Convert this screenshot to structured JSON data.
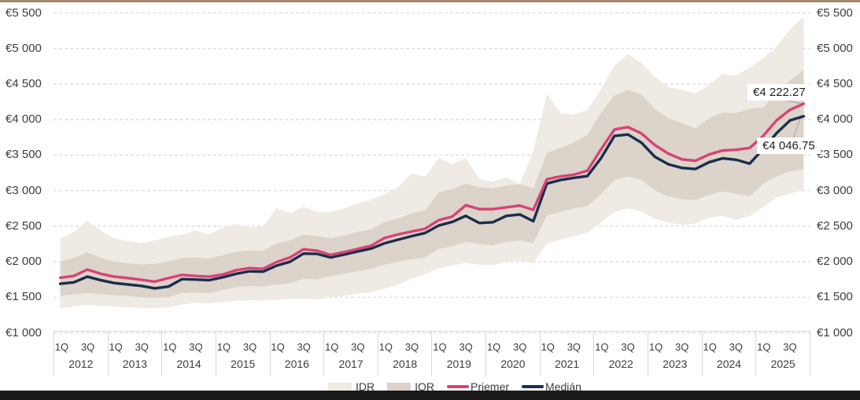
{
  "colors": {
    "priemer_line": "#d64374",
    "median_line": "#1a2e4d",
    "idr_band": "#efeae4",
    "iqr_band": "#dcd3ca",
    "gridline": "#dcdcdc",
    "axis_border": "#d9d9d9",
    "axis_text": "#3d3d3d",
    "top_border": "#a58a6e",
    "bottom_bar": "#1b1b1b",
    "leader_line": "#a6a6a6"
  },
  "annotations": {
    "priemer_label": "€4 222.27",
    "median_label": "€4 046.75"
  },
  "legend": {
    "items": [
      {
        "label": "IDR",
        "type": "band"
      },
      {
        "label": "IQR",
        "type": "band"
      },
      {
        "label": "Priemer",
        "type": "line"
      },
      {
        "label": "Medián",
        "type": "line"
      }
    ]
  },
  "chart_data": {
    "type": "line",
    "title": "",
    "xlabel": "",
    "ylabel": "",
    "ylim": [
      1000,
      5500
    ],
    "grid": "horizontal-dashed",
    "legend_position": "bottom",
    "y_axis": {
      "tick_values": [
        5500,
        5000,
        4500,
        4000,
        3500,
        3000,
        2500,
        2000,
        1500,
        1000
      ],
      "tick_labels": [
        "€5 500",
        "€5 000",
        "€4 500",
        "€4 000",
        "€3 500",
        "€3 000",
        "€2 500",
        "€2 000",
        "€1 500",
        "€1 000"
      ],
      "both_sides": true
    },
    "x_axis": {
      "years": [
        "2012",
        "2013",
        "2014",
        "2015",
        "2016",
        "2017",
        "2018",
        "2019",
        "2020",
        "2021",
        "2022",
        "2023",
        "2024",
        "2025"
      ],
      "quarter_labels": [
        "1Q",
        "3Q"
      ],
      "quarters_per_year": 4
    },
    "series": [
      {
        "name": "IDR_top",
        "values": [
          2330,
          2420,
          2570,
          2440,
          2330,
          2290,
          2260,
          2300,
          2350,
          2380,
          2440,
          2385,
          2475,
          2530,
          2480,
          2495,
          2755,
          2680,
          2775,
          2700,
          2705,
          2750,
          2820,
          2870,
          2950,
          3050,
          3240,
          3200,
          3460,
          3370,
          3460,
          3165,
          3130,
          3185,
          3095,
          3560,
          4355,
          4095,
          4070,
          4135,
          4430,
          4760,
          4925,
          4795,
          4600,
          4455,
          4420,
          4365,
          4490,
          4640,
          4620,
          4730,
          4860,
          5030,
          5270,
          5445
        ]
      },
      {
        "name": "IDR_bottom",
        "values": [
          1340,
          1370,
          1395,
          1380,
          1370,
          1360,
          1350,
          1345,
          1360,
          1400,
          1420,
          1415,
          1430,
          1450,
          1460,
          1455,
          1465,
          1475,
          1480,
          1470,
          1500,
          1520,
          1550,
          1575,
          1620,
          1680,
          1760,
          1830,
          1905,
          1950,
          1980,
          1960,
          1950,
          2000,
          2020,
          1985,
          2250,
          2310,
          2360,
          2410,
          2550,
          2700,
          2750,
          2705,
          2600,
          2550,
          2520,
          2535,
          2620,
          2645,
          2590,
          2645,
          2772,
          2900,
          2960,
          3005
        ]
      },
      {
        "name": "IQR_top",
        "values": [
          2000,
          2055,
          2130,
          2060,
          2000,
          1980,
          1960,
          1970,
          2005,
          2050,
          2060,
          2045,
          2090,
          2140,
          2160,
          2150,
          2260,
          2300,
          2380,
          2360,
          2330,
          2370,
          2420,
          2455,
          2560,
          2610,
          2680,
          2725,
          2975,
          3020,
          3100,
          3050,
          3030,
          3070,
          3090,
          3035,
          3530,
          3600,
          3680,
          3785,
          4100,
          4335,
          4420,
          4350,
          4150,
          4020,
          3950,
          3875,
          4020,
          4100,
          4090,
          4150,
          4170,
          4380,
          4550,
          4700
        ]
      },
      {
        "name": "IQR_bottom",
        "values": [
          1520,
          1540,
          1560,
          1545,
          1530,
          1520,
          1500,
          1490,
          1500,
          1560,
          1570,
          1560,
          1600,
          1640,
          1660,
          1650,
          1680,
          1700,
          1760,
          1750,
          1800,
          1830,
          1870,
          1900,
          1960,
          2000,
          2035,
          2060,
          2180,
          2220,
          2280,
          2250,
          2230,
          2280,
          2300,
          2260,
          2650,
          2700,
          2750,
          2780,
          2950,
          3150,
          3200,
          3150,
          3000,
          2920,
          2880,
          2870,
          2940,
          2990,
          2960,
          2920,
          3100,
          3200,
          3270,
          3305
        ]
      },
      {
        "name": "Priemer",
        "values": [
          1775,
          1800,
          1890,
          1830,
          1790,
          1770,
          1745,
          1720,
          1770,
          1815,
          1800,
          1790,
          1820,
          1880,
          1910,
          1900,
          1995,
          2060,
          2175,
          2155,
          2095,
          2135,
          2180,
          2225,
          2335,
          2385,
          2425,
          2465,
          2585,
          2635,
          2795,
          2740,
          2740,
          2765,
          2790,
          2730,
          3160,
          3200,
          3225,
          3280,
          3580,
          3860,
          3895,
          3805,
          3640,
          3520,
          3440,
          3420,
          3510,
          3565,
          3575,
          3600,
          3770,
          3990,
          4140,
          4222.27
        ]
      },
      {
        "name": "Medián",
        "values": [
          1690,
          1710,
          1790,
          1740,
          1700,
          1680,
          1660,
          1625,
          1650,
          1755,
          1750,
          1740,
          1780,
          1830,
          1865,
          1860,
          1945,
          2000,
          2115,
          2110,
          2060,
          2100,
          2145,
          2185,
          2260,
          2310,
          2360,
          2405,
          2510,
          2560,
          2645,
          2545,
          2555,
          2645,
          2665,
          2570,
          3100,
          3150,
          3180,
          3205,
          3455,
          3770,
          3790,
          3675,
          3475,
          3370,
          3320,
          3305,
          3400,
          3455,
          3435,
          3380,
          3585,
          3810,
          3990,
          4046.75
        ]
      }
    ],
    "end_labels": [
      {
        "series": "Priemer",
        "text": "€4 222.27"
      },
      {
        "series": "Medián",
        "text": "€4 046.75"
      }
    ]
  }
}
